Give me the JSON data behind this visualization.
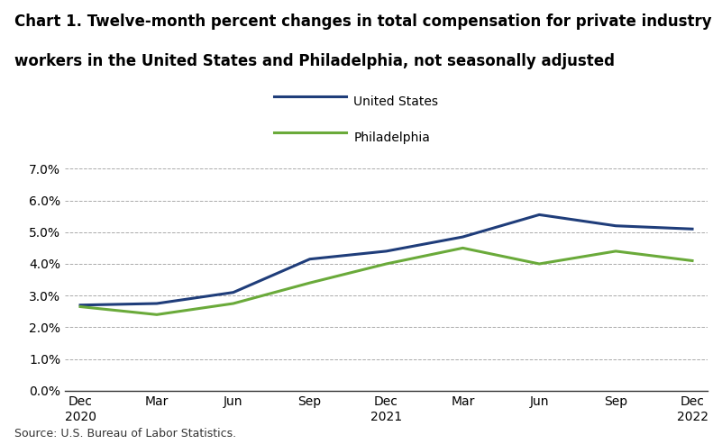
{
  "title_line1": "Chart 1. Twelve-month percent changes in total compensation for private industry",
  "title_line2": "workers in the United States and Philadelphia, not seasonally adjusted",
  "source": "Source: U.S. Bureau of Labor Statistics.",
  "x_labels": [
    "Dec\n2020",
    "Mar",
    "Jun",
    "Sep",
    "Dec\n2021",
    "Mar",
    "Jun",
    "Sep",
    "Dec\n2022"
  ],
  "us_values": [
    2.7,
    2.75,
    3.1,
    4.15,
    4.4,
    4.85,
    5.55,
    5.2,
    5.1
  ],
  "philly_values": [
    2.65,
    2.4,
    2.75,
    3.4,
    4.0,
    4.5,
    4.0,
    4.4,
    4.1
  ],
  "us_color": "#1f3d7a",
  "philly_color": "#6aaa3a",
  "ylim_min": 0.0,
  "ylim_max": 7.0,
  "ytick_values": [
    0.0,
    1.0,
    2.0,
    3.0,
    4.0,
    5.0,
    6.0,
    7.0
  ],
  "ytick_labels": [
    "0.0%",
    "1.0%",
    "2.0%",
    "3.0%",
    "4.0%",
    "5.0%",
    "6.0%",
    "7.0%"
  ],
  "legend_labels": [
    "United States",
    "Philadelphia"
  ],
  "background_color": "#ffffff",
  "grid_color": "#aaaaaa",
  "line_width": 2.2,
  "title_fontsize": 12,
  "tick_fontsize": 10,
  "source_fontsize": 9
}
